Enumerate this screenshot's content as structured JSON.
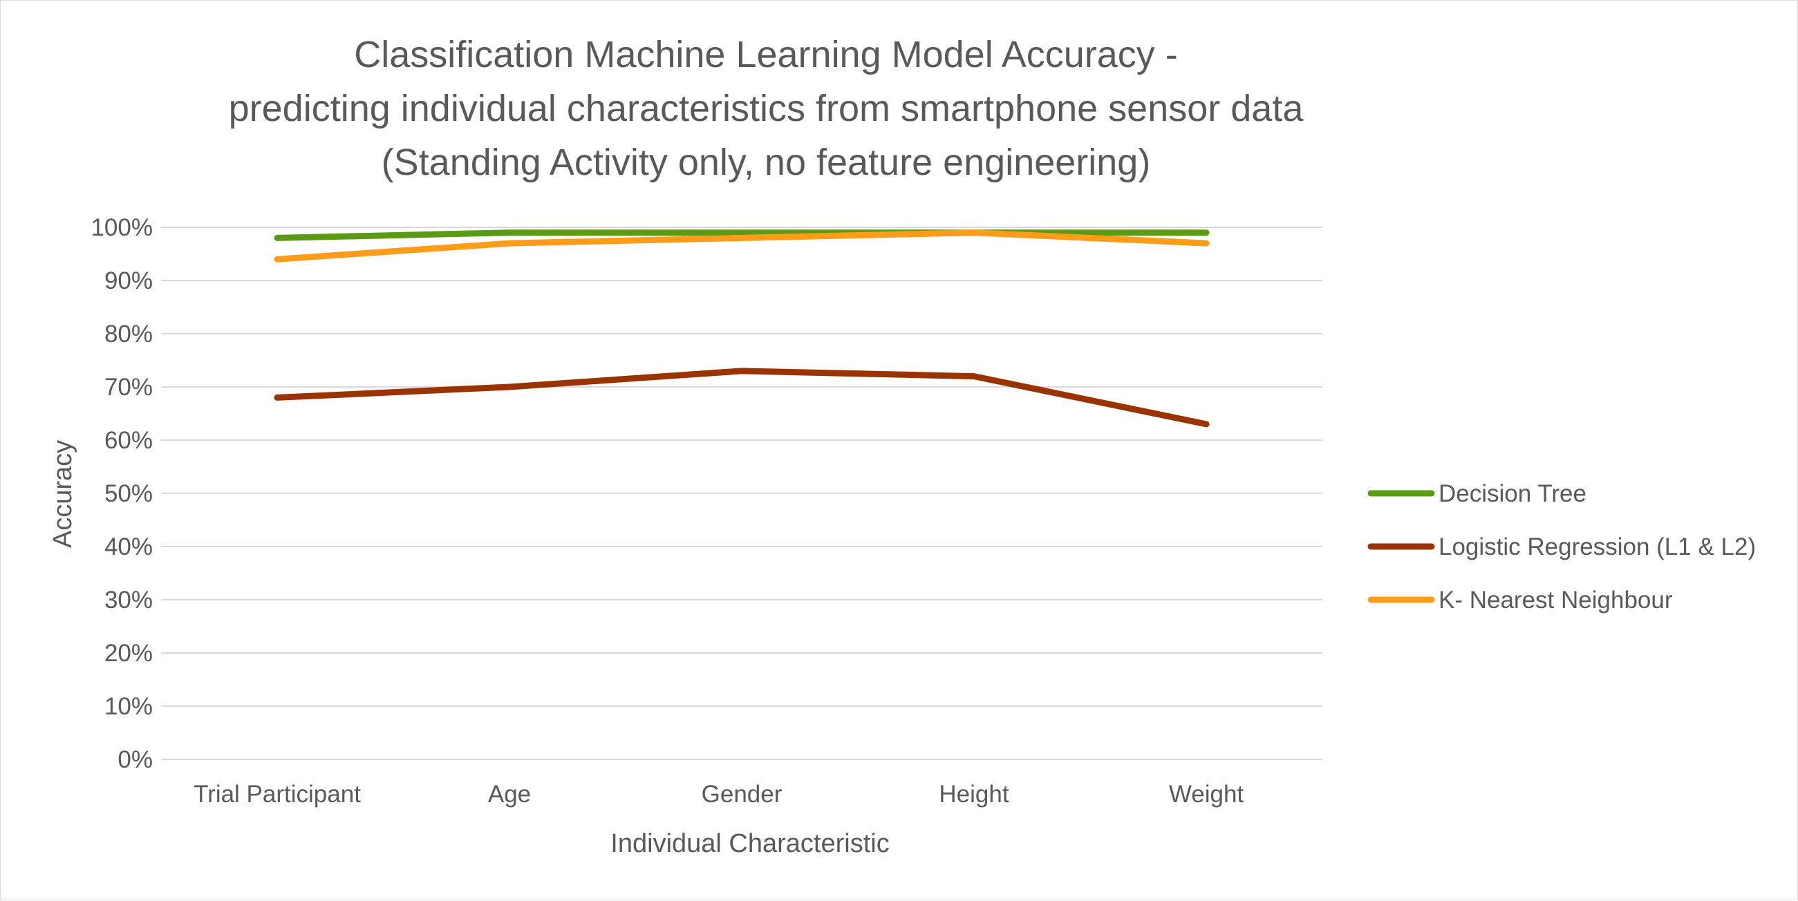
{
  "chart_data": {
    "type": "line",
    "title": [
      "Classification Machine Learning Model Accuracy -",
      "predicting individual characteristics from smartphone sensor data",
      "(Standing Activity only, no feature engineering)"
    ],
    "xlabel": "Individual Characteristic",
    "ylabel": "Accuracy",
    "categories": [
      "Trial Participant",
      "Age",
      "Gender",
      "Height",
      "Weight"
    ],
    "ylim": [
      0,
      1
    ],
    "yticks": [
      "0%",
      "10%",
      "20%",
      "30%",
      "40%",
      "50%",
      "60%",
      "70%",
      "80%",
      "90%",
      "100%"
    ],
    "grid": true,
    "legend_position": "right",
    "series": [
      {
        "name": "Decision Tree",
        "color": "#5a9a14",
        "values": [
          0.98,
          0.99,
          0.99,
          0.99,
          0.99
        ]
      },
      {
        "name": "Logistic Regression (L1 & L2)",
        "color": "#993300",
        "values": [
          0.68,
          0.7,
          0.73,
          0.72,
          0.63
        ]
      },
      {
        "name": "K- Nearest Neighbour",
        "color": "#ff9c1a",
        "values": [
          0.94,
          0.97,
          0.98,
          0.99,
          0.97
        ]
      }
    ]
  }
}
